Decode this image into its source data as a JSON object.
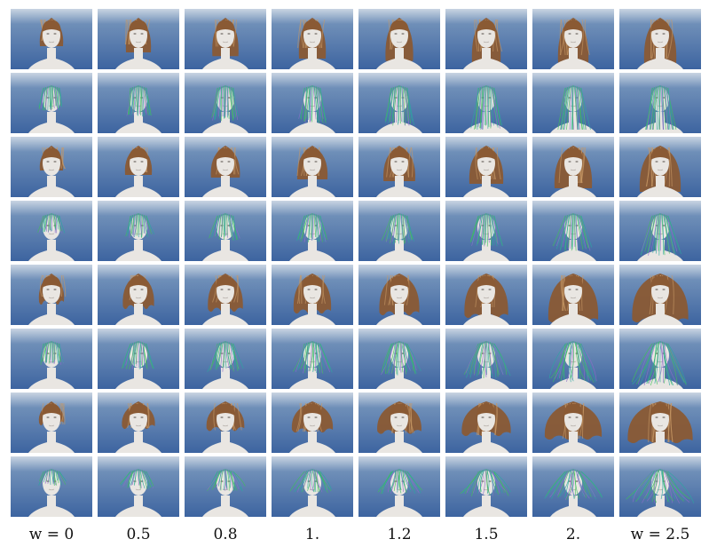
{
  "figure": {
    "columns": [
      {
        "w": 0,
        "label": "w = 0"
      },
      {
        "w": 0.5,
        "label": "0.5"
      },
      {
        "w": 0.8,
        "label": "0.8"
      },
      {
        "w": 1.0,
        "label": "1."
      },
      {
        "w": 1.2,
        "label": "1.2"
      },
      {
        "w": 1.5,
        "label": "1.5"
      },
      {
        "w": 2.0,
        "label": "2."
      },
      {
        "w": 2.5,
        "label": "w = 2.5"
      }
    ],
    "rows": [
      {
        "render": "shaded",
        "style": "straight-long"
      },
      {
        "render": "strands",
        "style": "straight-long"
      },
      {
        "render": "shaded",
        "style": "bob"
      },
      {
        "render": "strands",
        "style": "bob"
      },
      {
        "render": "shaded",
        "style": "wavy"
      },
      {
        "render": "strands",
        "style": "wavy"
      },
      {
        "render": "shaded",
        "style": "curly"
      },
      {
        "render": "strands",
        "style": "curly"
      }
    ],
    "colors": {
      "sky_top": "#c9d4e2",
      "sky_mid": "#6f8fb8",
      "sky_bottom": "#3d64a0",
      "hair_brown": "#8a5a34",
      "hair_light": "#c89a66",
      "strand_green": "#3fbf5a",
      "strand_teal": "#2aa7a0",
      "strand_purple": "#8b6cc8",
      "head": "#e9e6e2"
    }
  }
}
